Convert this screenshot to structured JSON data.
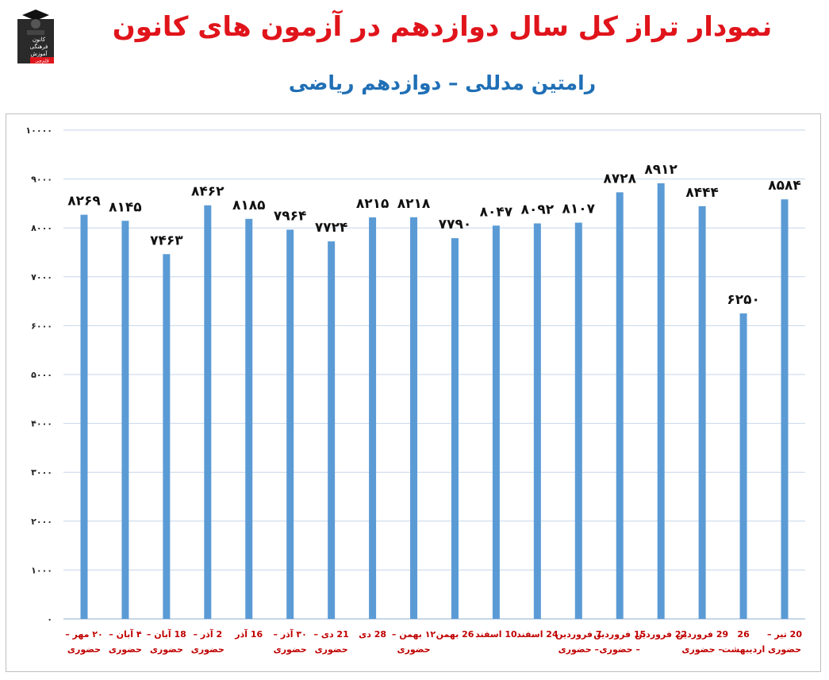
{
  "header": {
    "title": "نمودار تراز کل سال دوازدهم در آزمون های کانون",
    "subtitle": "رامتین مدللی – دوازدهم ریاضی"
  },
  "logo": {
    "lines": [
      "کانون",
      "فرهنگی",
      "آموزش"
    ],
    "badge": "قلم‌چی",
    "icon": "graduate-logo-icon"
  },
  "colors": {
    "title": "#e0141b",
    "subtitle": "#1f6fb5",
    "bar": "#5b9bd5",
    "category_label": "#c00000",
    "gridline": "#c5d6ea"
  },
  "chart_data": {
    "type": "bar",
    "ylim": [
      0,
      10000
    ],
    "y_ticks": [
      {
        "value": 0,
        "label": "۰"
      },
      {
        "value": 1000,
        "label": "۱۰۰۰"
      },
      {
        "value": 2000,
        "label": "۲۰۰۰"
      },
      {
        "value": 3000,
        "label": "۳۰۰۰"
      },
      {
        "value": 4000,
        "label": "۴۰۰۰"
      },
      {
        "value": 5000,
        "label": "۵۰۰۰"
      },
      {
        "value": 6000,
        "label": "۶۰۰۰"
      },
      {
        "value": 7000,
        "label": "۷۰۰۰"
      },
      {
        "value": 8000,
        "label": "۸۰۰۰"
      },
      {
        "value": 9000,
        "label": "۹۰۰۰"
      },
      {
        "value": 10000,
        "label": "۱۰۰۰۰"
      }
    ],
    "grid": true,
    "categories": [
      [
        "۲۰ مهر –",
        "حضوری"
      ],
      [
        "۴ آبان –",
        "حضوری"
      ],
      [
        "18 آبان –",
        "حضوری"
      ],
      [
        "2 آذر –",
        "حضوری"
      ],
      [
        "16 آذر"
      ],
      [
        "۳۰ آذر –",
        "حضوری"
      ],
      [
        "21 دی –",
        "حضوری"
      ],
      [
        "28 دی"
      ],
      [
        "۱۲ بهمن –",
        "حضوری"
      ],
      [
        "26 بهمن"
      ],
      [
        "10 اسفند"
      ],
      [
        "24 اسفند"
      ],
      [
        "7 فروردین",
        "– حضوری"
      ],
      [
        "15 فروردین",
        "– حضوری"
      ],
      [
        "22 فروردین"
      ],
      [
        "29 فروردین",
        "– حضوری"
      ],
      [
        "26",
        "اردیبهشت"
      ],
      [
        "20 تیر –",
        "حضوری"
      ]
    ],
    "values": [
      8269,
      8145,
      7463,
      8462,
      8185,
      7964,
      7724,
      8215,
      8218,
      7790,
      8047,
      8092,
      8107,
      8728,
      8912,
      8444,
      6250,
      8584
    ],
    "value_labels": [
      "۸۲۶۹",
      "۸۱۴۵",
      "۷۴۶۳",
      "۸۴۶۲",
      "۸۱۸۵",
      "۷۹۶۴",
      "۷۷۲۴",
      "۸۲۱۵",
      "۸۲۱۸",
      "۷۷۹۰",
      "۸۰۴۷",
      "۸۰۹۲",
      "۸۱۰۷",
      "۸۷۲۸",
      "۸۹۱۲",
      "۸۴۴۴",
      "۶۲۵۰",
      "۸۵۸۴"
    ]
  }
}
